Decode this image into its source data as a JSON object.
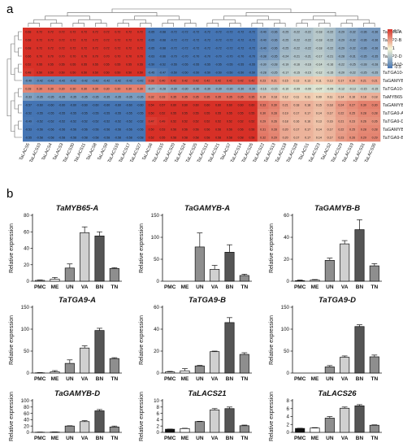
{
  "panel_a_label": "a",
  "panel_b_label": "b",
  "heatmap": {
    "type": "heatmap",
    "rows": [
      "TaAMS-A",
      "TaTIP2-B",
      "TaIG1",
      "TaTIP2-D",
      "TaTGA10-D",
      "TaTGA10-B",
      "TaGAMYB-D",
      "TaTGA10-A",
      "TaMYB65-A",
      "TaGAMYB-A",
      "TaTGA9-A",
      "TaTGA9-D",
      "TaGAMYB-B",
      "TaTGA9-B"
    ],
    "columns": [
      "TaLACS5",
      "TaLACS10",
      "TaLACS4",
      "TaLACS3",
      "TaLACS30",
      "TaLACS11",
      "TaLACS8",
      "TaLACS9",
      "TaLACS16",
      "TaLACS17",
      "TaLACS27",
      "TaLACS6",
      "TaLACS15",
      "TaLACS20",
      "TaLACS24",
      "TaLACS25",
      "TaLACS12",
      "TaLACS21",
      "TaLACS7",
      "TaLACS14",
      "TaLACS26",
      "TaLACS22",
      "TaLACS13",
      "TaLACS18",
      "TaLACS28",
      "TaLACS1",
      "TaLACS23",
      "TaLACS2",
      "TaLACS29",
      "TaLACS19",
      "TaLACS31",
      "TaLACS35"
    ],
    "colorbar": {
      "max": 0.5,
      "min": -0.5,
      "high_color": "#d73027",
      "mid_color": "#f7f7d7",
      "low_color": "#4575b4"
    },
    "row_pattern": [
      0.72,
      0.72,
      0.72,
      0.7,
      0.55,
      0.5,
      -0.42,
      0.3,
      -0.35,
      -0.6,
      -0.55,
      -0.52,
      -0.56,
      -0.58
    ],
    "col_pattern": [
      0.95,
      1,
      1,
      1,
      1,
      1,
      1,
      1,
      1,
      1,
      1,
      -0.9,
      -0.95,
      -1,
      -1,
      -1,
      -1,
      -1,
      -1,
      -1,
      -1,
      -0.55,
      -0.5,
      -0.35,
      -0.3,
      -0.3,
      -0.25,
      -0.3,
      -0.4,
      -0.45,
      -0.5,
      -0.5
    ]
  },
  "bar_panels": [
    {
      "title": "TaMYB65-A",
      "ylabel": "Relative expression",
      "categories": [
        "PMC",
        "ME",
        "UN",
        "VA",
        "BN",
        "TN"
      ],
      "values": [
        1,
        2.5,
        16,
        59,
        55,
        15.5
      ],
      "errors": [
        0.5,
        2,
        5,
        7,
        5,
        1
      ],
      "ylim": [
        0,
        80
      ],
      "yticks": [
        0,
        20,
        40,
        60,
        80
      ],
      "fills": [
        "#ffffff",
        "#ffffff",
        "#8e8e8e",
        "#d0d0d0",
        "#555555",
        "#8e8e8e"
      ]
    },
    {
      "title": "TaGAMYB-A",
      "ylabel": "Relative expression",
      "categories": [
        "PMC",
        "ME",
        "UN",
        "VA",
        "BN",
        "TN"
      ],
      "values": [
        0,
        0,
        78,
        27,
        66,
        13
      ],
      "errors": [
        0,
        0,
        32,
        9,
        17,
        3
      ],
      "ylim": [
        0,
        150
      ],
      "yticks": [
        0,
        50,
        100,
        150
      ],
      "fills": [
        "#ffffff",
        "#ffffff",
        "#8e8e8e",
        "#d0d0d0",
        "#555555",
        "#8e8e8e"
      ]
    },
    {
      "title": "TaGAMYB-B",
      "ylabel": "Relative expression",
      "categories": [
        "PMC",
        "ME",
        "UN",
        "VA",
        "BN",
        "TN"
      ],
      "values": [
        0.5,
        1,
        19,
        34,
        47,
        14
      ],
      "errors": [
        0.5,
        0.5,
        2,
        3,
        9,
        2
      ],
      "ylim": [
        0,
        60
      ],
      "yticks": [
        0,
        20,
        40,
        60
      ],
      "fills": [
        "#ffffff",
        "#ffffff",
        "#8e8e8e",
        "#d0d0d0",
        "#555555",
        "#8e8e8e"
      ]
    },
    {
      "title": "TaTGA9-A",
      "ylabel": "Relative expression",
      "categories": [
        "PMC",
        "ME",
        "UN",
        "VA",
        "BN",
        "TN"
      ],
      "values": [
        0.5,
        2.5,
        22,
        57,
        97,
        33
      ],
      "errors": [
        0.5,
        3,
        8,
        5,
        5,
        2
      ],
      "ylim": [
        0,
        150
      ],
      "yticks": [
        0,
        50,
        100,
        150
      ],
      "fills": [
        "#ffffff",
        "#ffffff",
        "#8e8e8e",
        "#d0d0d0",
        "#555555",
        "#8e8e8e"
      ]
    },
    {
      "title": "TaTGA9-B",
      "ylabel": "Relative expression",
      "categories": [
        "PMC",
        "ME",
        "UN",
        "VA",
        "BN",
        "TN"
      ],
      "values": [
        1,
        2,
        6.5,
        19.5,
        46,
        17
      ],
      "errors": [
        0.5,
        2,
        0.5,
        0.5,
        4.5,
        1.5
      ],
      "ylim": [
        0,
        60
      ],
      "yticks": [
        0,
        20,
        40,
        60
      ],
      "fills": [
        "#ffffff",
        "#ffffff",
        "#8e8e8e",
        "#d0d0d0",
        "#555555",
        "#8e8e8e"
      ]
    },
    {
      "title": "TaTGA9-D",
      "ylabel": "Relative expression",
      "categories": [
        "PMC",
        "ME",
        "UN",
        "VA",
        "BN",
        "TN"
      ],
      "values": [
        0,
        0,
        14,
        36,
        106,
        37
      ],
      "errors": [
        0,
        0,
        3,
        3,
        4,
        4
      ],
      "ylim": [
        0,
        150
      ],
      "yticks": [
        0,
        50,
        100,
        150
      ],
      "fills": [
        "#ffffff",
        "#ffffff",
        "#8e8e8e",
        "#d0d0d0",
        "#555555",
        "#8e8e8e"
      ]
    },
    {
      "title": "TaGAMYB-D",
      "ylabel": "Relative expression",
      "categories": [
        "PMC",
        "ME",
        "UN",
        "VA",
        "BN",
        "TN"
      ],
      "values": [
        0.5,
        1,
        20,
        34,
        68,
        17
      ],
      "errors": [
        0.5,
        0.5,
        1,
        3,
        4,
        3
      ],
      "ylim": [
        0,
        100
      ],
      "yticks": [
        0,
        20,
        40,
        60,
        80,
        100
      ],
      "fills": [
        "#ffffff",
        "#ffffff",
        "#8e8e8e",
        "#d0d0d0",
        "#555555",
        "#8e8e8e"
      ]
    },
    {
      "title": "TaLACS21",
      "ylabel": "Relative expression",
      "categories": [
        "PMC",
        "ME",
        "UN",
        "VA",
        "BN",
        "TN"
      ],
      "values": [
        1,
        1.2,
        3.4,
        7.1,
        7.5,
        2.1
      ],
      "errors": [
        0.05,
        0.1,
        0.1,
        0.4,
        0.5,
        0.2
      ],
      "ylim": [
        0,
        10
      ],
      "yticks": [
        0,
        2,
        4,
        6,
        8,
        10
      ],
      "fills": [
        "#111111",
        "#ffffff",
        "#8e8e8e",
        "#d0d0d0",
        "#555555",
        "#8e8e8e"
      ]
    },
    {
      "title": "TaLACS26",
      "ylabel": "Relative expression",
      "categories": [
        "PMC",
        "ME",
        "UN",
        "VA",
        "BN",
        "TN"
      ],
      "values": [
        1,
        1.1,
        3.6,
        6.1,
        6.7,
        1.8
      ],
      "errors": [
        0.05,
        0.1,
        0.4,
        0.3,
        0.3,
        0.1
      ],
      "ylim": [
        0,
        8
      ],
      "yticks": [
        0,
        2,
        4,
        6,
        8
      ],
      "fills": [
        "#111111",
        "#ffffff",
        "#8e8e8e",
        "#d0d0d0",
        "#555555",
        "#8e8e8e"
      ]
    }
  ]
}
